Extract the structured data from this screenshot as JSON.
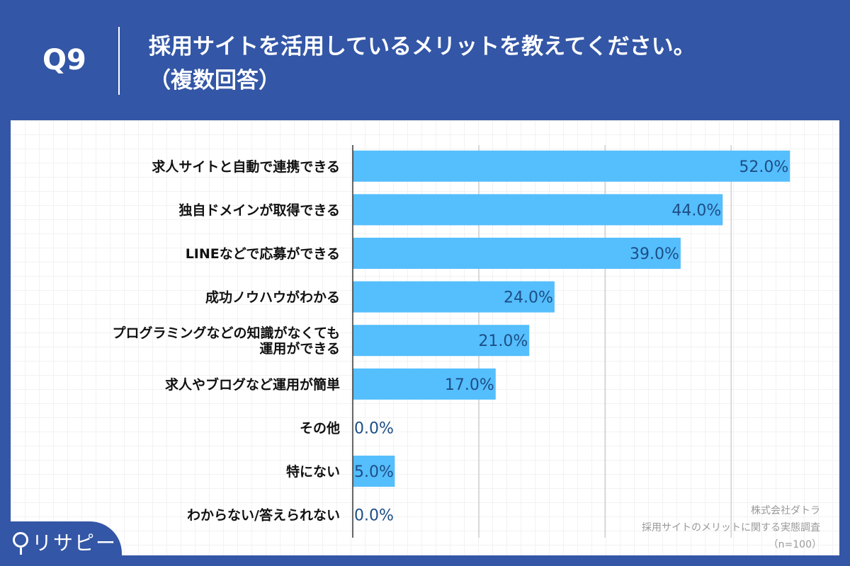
{
  "header": {
    "question": "Q9",
    "title_line1": "採用サイトを活用しているメリットを教えてください。",
    "title_line2": "（複数回答）"
  },
  "colors": {
    "background": "#3356a6",
    "bar": "#55befc",
    "value_label": "#1d4e86"
  },
  "chart_data": {
    "type": "bar",
    "orientation": "horizontal",
    "categories": [
      "求人サイトと自動で連携できる",
      "独自ドメインが取得できる",
      "LINEなどで応募ができる",
      "成功ノウハウがわかる",
      "プログラミングなどの知識がなくても\n運用ができる",
      "求人やブログなど運用が簡単",
      "その他",
      "特にない",
      "わからない/答えられない"
    ],
    "values": [
      52.0,
      44.0,
      39.0,
      24.0,
      21.0,
      17.0,
      0.0,
      5.0,
      0.0
    ],
    "labels": [
      "52.0%",
      "44.0%",
      "39.0%",
      "24.0%",
      "21.0%",
      "17.0%",
      "0.0%",
      "5.0%",
      "0.0%"
    ],
    "xlim": [
      0,
      60
    ],
    "grid_step": 15,
    "grid": true,
    "unit": "%"
  },
  "source": {
    "company": "株式会社ダトラ",
    "survey": "採用サイトのメリットに関する実態調査",
    "n": "（n=100）"
  },
  "logo": {
    "text": "リサピー"
  }
}
